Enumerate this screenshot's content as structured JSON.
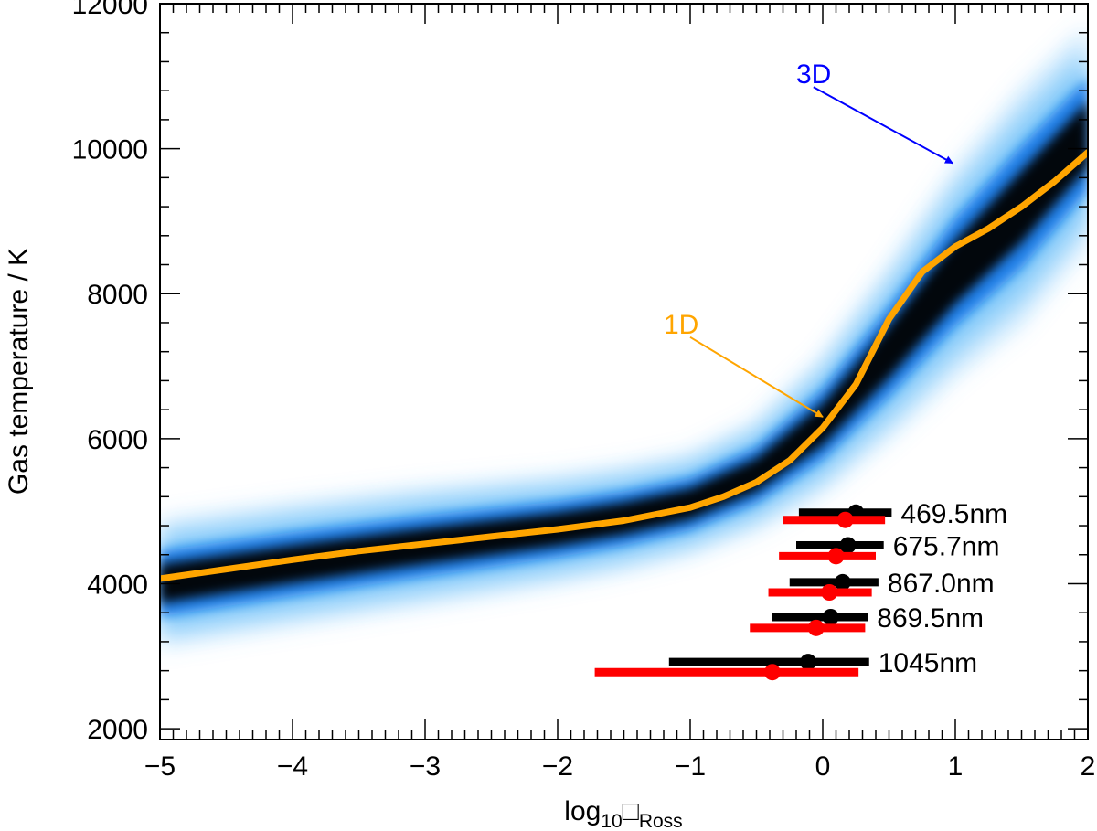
{
  "chart_data": {
    "type": "line",
    "xlabel": {
      "main": "log",
      "sub": "10",
      "box": "□",
      "sub2": "Ross"
    },
    "ylabel": "Gas temperature / K",
    "xlim": [
      -5,
      2
    ],
    "ylim": [
      1850,
      12000
    ],
    "x_ticks": [
      -5,
      -4,
      -3,
      -2,
      -1,
      0,
      1,
      2
    ],
    "x_tick_labels": [
      "−5",
      "−4",
      "−3",
      "−2",
      "−1",
      "0",
      "1",
      "2"
    ],
    "y_ticks": [
      2000,
      4000,
      6000,
      8000,
      10000,
      12000
    ],
    "y_tick_labels": [
      "2000",
      "4000",
      "6000",
      "8000",
      "10000",
      "12000"
    ],
    "grid": false,
    "colors": {
      "model_1d": "#ffa500",
      "label_3d": "#0000ff",
      "series_black": "#000000",
      "series_red": "#ff0000",
      "density_dark": "#000000",
      "density_mid": "#0a73e6",
      "density_light": "#66bdf8"
    },
    "annotations": [
      {
        "text": "3D",
        "color": "#0000ff",
        "text_at": [
          -0.2,
          10900
        ],
        "arrow_from": [
          -0.07,
          10850
        ],
        "arrow_to": [
          0.98,
          9800
        ]
      },
      {
        "text": "1D",
        "color": "#ffa500",
        "text_at": [
          -1.2,
          7450
        ],
        "arrow_from": [
          -1.0,
          7400
        ],
        "arrow_to": [
          0.0,
          6300
        ]
      }
    ],
    "series": [
      {
        "label": "1D",
        "x": [
          -5,
          -4.5,
          -4,
          -3.5,
          -3,
          -2.5,
          -2,
          -1.5,
          -1,
          -0.75,
          -0.5,
          -0.25,
          0,
          0.25,
          0.5,
          0.75,
          1,
          1.25,
          1.5,
          1.75,
          2
        ],
        "y": [
          4070,
          4200,
          4330,
          4450,
          4550,
          4650,
          4750,
          4870,
          5050,
          5200,
          5400,
          5700,
          6150,
          6750,
          7650,
          8300,
          8650,
          8900,
          9200,
          9550,
          9950
        ]
      },
      {
        "label": "3D",
        "x": [
          -5,
          -4,
          -3,
          -2,
          -1.5,
          -1,
          -0.5,
          0,
          0.5,
          1,
          1.5,
          2
        ],
        "y": [
          4000,
          4270,
          4520,
          4750,
          4900,
          5100,
          5500,
          6200,
          7200,
          8300,
          9200,
          10200
        ],
        "band_halfwidth": [
          700,
          680,
          650,
          600,
          580,
          560,
          600,
          750,
          950,
          1150,
          1300,
          1200
        ]
      }
    ],
    "error_bars": [
      {
        "wavelength": "469.5nm",
        "black": {
          "x": 0.25,
          "xmin": -0.18,
          "xmax": 0.52,
          "y": 4980
        },
        "red": {
          "x": 0.17,
          "xmin": -0.3,
          "xmax": 0.47,
          "y": 4880
        }
      },
      {
        "wavelength": "675.7nm",
        "black": {
          "x": 0.19,
          "xmin": -0.2,
          "xmax": 0.46,
          "y": 4530
        },
        "red": {
          "x": 0.1,
          "xmin": -0.33,
          "xmax": 0.4,
          "y": 4380
        }
      },
      {
        "wavelength": "867.0nm",
        "black": {
          "x": 0.15,
          "xmin": -0.25,
          "xmax": 0.42,
          "y": 4020
        },
        "red": {
          "x": 0.05,
          "xmin": -0.41,
          "xmax": 0.37,
          "y": 3880
        }
      },
      {
        "wavelength": "869.5nm",
        "black": {
          "x": 0.06,
          "xmin": -0.38,
          "xmax": 0.34,
          "y": 3540
        },
        "red": {
          "x": -0.05,
          "xmin": -0.55,
          "xmax": 0.32,
          "y": 3390
        }
      },
      {
        "wavelength": "1045nm",
        "black": {
          "x": -0.11,
          "xmin": -1.16,
          "xmax": 0.35,
          "y": 2920
        },
        "red": {
          "x": -0.38,
          "xmin": -1.72,
          "xmax": 0.27,
          "y": 2780
        }
      }
    ]
  }
}
